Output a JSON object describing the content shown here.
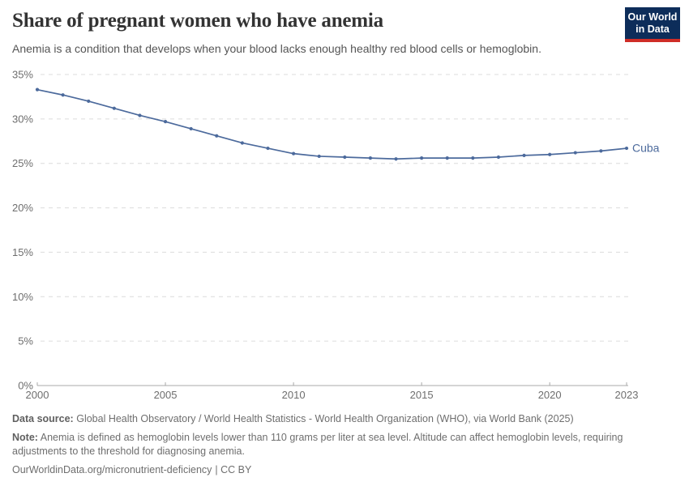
{
  "header": {
    "title": "Share of pregnant women who have anemia",
    "subtitle": "Anemia is a condition that develops when your blood lacks enough healthy red blood cells or hemoglobin.",
    "logo": {
      "line1": "Our World",
      "line2": "in Data",
      "bg_color": "#0d2d5a",
      "stripe_color": "#cf2d27"
    }
  },
  "chart_data": {
    "type": "line",
    "title": "Share of pregnant women who have anemia",
    "xlabel": "",
    "ylabel": "",
    "unit": "%",
    "x": [
      2000,
      2001,
      2002,
      2003,
      2004,
      2005,
      2006,
      2007,
      2008,
      2009,
      2010,
      2011,
      2012,
      2013,
      2014,
      2015,
      2016,
      2017,
      2018,
      2019,
      2020,
      2021,
      2022,
      2023
    ],
    "series": [
      {
        "name": "Cuba",
        "color": "#4c6a9c",
        "values": [
          33.3,
          32.7,
          32.0,
          31.2,
          30.4,
          29.7,
          28.9,
          28.1,
          27.3,
          26.7,
          26.1,
          25.8,
          25.7,
          25.6,
          25.5,
          25.6,
          25.6,
          25.6,
          25.7,
          25.9,
          26.0,
          26.2,
          26.4,
          26.7
        ]
      }
    ],
    "xlim": [
      2000,
      2023
    ],
    "ylim": [
      0,
      35
    ],
    "xticks": [
      2000,
      2005,
      2010,
      2015,
      2020,
      2023
    ],
    "yticks": [
      0,
      5,
      10,
      15,
      20,
      25,
      30,
      35
    ],
    "ytick_labels": [
      "0%",
      "5%",
      "10%",
      "15%",
      "20%",
      "25%",
      "30%",
      "35%"
    ],
    "grid": "horizontal-dashed",
    "legend": "end-of-line-label",
    "colors": {
      "line": "#4c6a9c",
      "grid": "#dcdcdc",
      "axis": "#a9a9a9",
      "tick_label": "#6e6e6e"
    }
  },
  "footer": {
    "data_source_label": "Data source:",
    "data_source": "Global Health Observatory / World Health Statistics - World Health Organization (WHO), via World Bank (2025)",
    "note_label": "Note:",
    "note": "Anemia is defined as hemoglobin levels lower than 110 grams per liter at sea level. Altitude can affect hemoglobin levels, requiring adjustments to the threshold for diagnosing anemia.",
    "url": "OurWorldinData.org/micronutrient-deficiency",
    "license": "| CC BY"
  }
}
